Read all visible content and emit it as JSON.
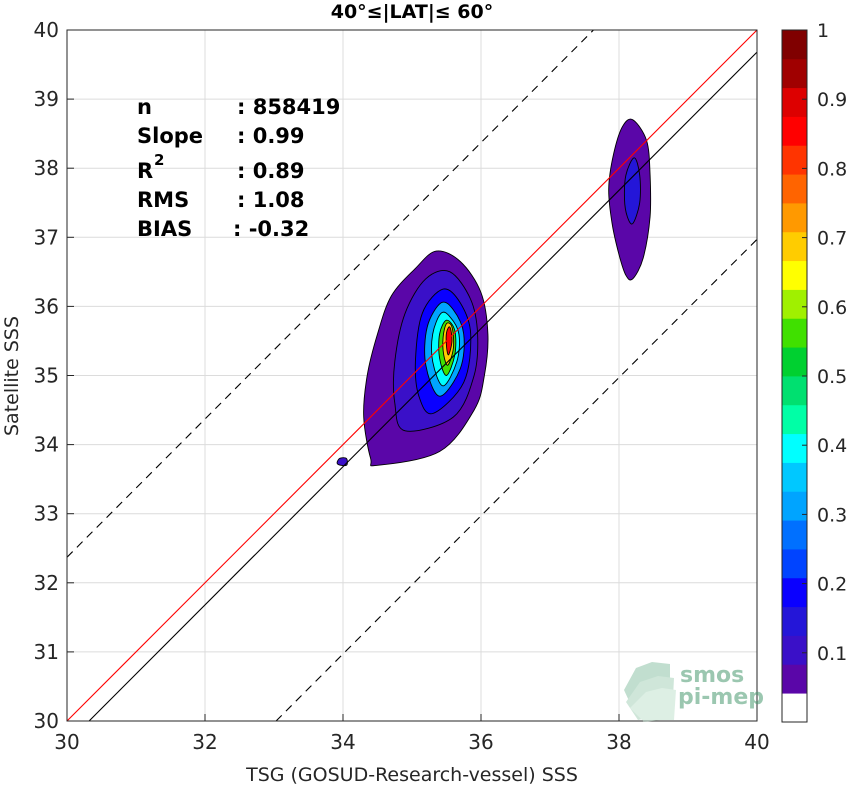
{
  "chart_data": {
    "type": "contour",
    "title": "40°≤|LAT|≤ 60°",
    "xlabel": "TSG (GOSUD-Research-vessel) SSS",
    "ylabel": "Satellite SSS",
    "xlim": [
      30,
      40
    ],
    "ylim": [
      30,
      40
    ],
    "xticks": [
      "30",
      "32",
      "34",
      "36",
      "38",
      "40"
    ],
    "yticks": [
      "30",
      "31",
      "32",
      "33",
      "34",
      "35",
      "36",
      "37",
      "38",
      "39",
      "40"
    ],
    "grid": true,
    "stats": [
      {
        "label": "n",
        "value": ": 858419"
      },
      {
        "label": "Slope",
        "value": ": 0.99"
      },
      {
        "label": "R",
        "sup": "2",
        "value": ": 0.89"
      },
      {
        "label": "RMS",
        "value": ": 1.08"
      },
      {
        "label": "BIAS",
        "value": ": -0.32"
      }
    ],
    "lines": {
      "identity": {
        "color": "#ff0000",
        "slope": 1,
        "intercept": 0
      },
      "fit": {
        "color": "#000000",
        "slope": 1,
        "intercept": -0.32
      },
      "fit_plus_rms": {
        "color": "#000000",
        "dash": true,
        "slope": 1,
        "intercept": 2.37
      },
      "fit_minus_rms": {
        "color": "#000000",
        "dash": true,
        "slope": 1,
        "intercept": -3.03
      }
    },
    "clusters": [
      {
        "center": [
          35.55,
          35.55
        ],
        "levels": [
          {
            "level": 0.05,
            "ring": [
              [
                34.5,
                33.7
              ],
              [
                35.4,
                33.9
              ],
              [
                35.9,
                34.5
              ],
              [
                36.05,
                35.0
              ],
              [
                36.1,
                35.6
              ],
              [
                36.0,
                36.2
              ],
              [
                35.7,
                36.65
              ],
              [
                35.35,
                36.8
              ],
              [
                35.05,
                36.55
              ],
              [
                34.7,
                36.15
              ],
              [
                34.5,
                35.6
              ],
              [
                34.35,
                35.0
              ],
              [
                34.3,
                34.4
              ],
              [
                34.4,
                33.8
              ]
            ]
          },
          {
            "level": 0.1,
            "ring": [
              [
                34.9,
                34.2
              ],
              [
                35.6,
                34.4
              ],
              [
                35.9,
                35.0
              ],
              [
                35.95,
                35.6
              ],
              [
                35.85,
                36.1
              ],
              [
                35.55,
                36.5
              ],
              [
                35.2,
                36.4
              ],
              [
                34.9,
                35.9
              ],
              [
                34.75,
                35.2
              ],
              [
                34.75,
                34.6
              ]
            ]
          },
          {
            "level": 0.2,
            "ring": [
              [
                35.3,
                34.45
              ],
              [
                35.75,
                34.9
              ],
              [
                35.85,
                35.6
              ],
              [
                35.7,
                36.05
              ],
              [
                35.45,
                36.25
              ],
              [
                35.15,
                35.9
              ],
              [
                35.05,
                35.2
              ],
              [
                35.1,
                34.7
              ]
            ]
          },
          {
            "level": 0.3,
            "ring": [
              [
                35.4,
                34.7
              ],
              [
                35.7,
                35.1
              ],
              [
                35.75,
                35.6
              ],
              [
                35.6,
                35.95
              ],
              [
                35.42,
                36.05
              ],
              [
                35.22,
                35.7
              ],
              [
                35.2,
                35.15
              ]
            ]
          },
          {
            "level": 0.4,
            "ring": [
              [
                35.45,
                34.85
              ],
              [
                35.65,
                35.2
              ],
              [
                35.68,
                35.6
              ],
              [
                35.55,
                35.85
              ],
              [
                35.42,
                35.9
              ],
              [
                35.3,
                35.6
              ],
              [
                35.3,
                35.2
              ]
            ]
          },
          {
            "level": 0.55,
            "ring": [
              [
                35.5,
                35.0
              ],
              [
                35.62,
                35.3
              ],
              [
                35.62,
                35.65
              ],
              [
                35.5,
                35.8
              ],
              [
                35.4,
                35.6
              ],
              [
                35.4,
                35.25
              ]
            ]
          },
          {
            "level": 0.7,
            "ring": [
              [
                35.52,
                35.15
              ],
              [
                35.6,
                35.4
              ],
              [
                35.58,
                35.7
              ],
              [
                35.5,
                35.75
              ],
              [
                35.45,
                35.55
              ],
              [
                35.46,
                35.3
              ]
            ]
          },
          {
            "level": 0.85,
            "ring": [
              [
                35.53,
                35.3
              ],
              [
                35.58,
                35.5
              ],
              [
                35.55,
                35.7
              ],
              [
                35.5,
                35.62
              ],
              [
                35.5,
                35.42
              ]
            ]
          }
        ]
      },
      {
        "center": [
          38.2,
          37.6
        ],
        "levels": [
          {
            "level": 0.05,
            "ring": [
              [
                38.2,
                36.4
              ],
              [
                38.35,
                36.7
              ],
              [
                38.45,
                37.3
              ],
              [
                38.45,
                37.9
              ],
              [
                38.4,
                38.4
              ],
              [
                38.2,
                38.7
              ],
              [
                38.05,
                38.6
              ],
              [
                37.92,
                38.2
              ],
              [
                37.85,
                37.7
              ],
              [
                37.9,
                37.2
              ],
              [
                38.0,
                36.75
              ],
              [
                38.1,
                36.45
              ]
            ]
          },
          {
            "level": 0.15,
            "ring": [
              [
                38.2,
                37.2
              ],
              [
                38.3,
                37.5
              ],
              [
                38.3,
                37.9
              ],
              [
                38.22,
                38.15
              ],
              [
                38.1,
                37.9
              ],
              [
                38.08,
                37.55
              ],
              [
                38.12,
                37.3
              ]
            ]
          }
        ]
      },
      {
        "center": [
          33.98,
          33.75
        ],
        "levels": [
          {
            "level": 0.1,
            "ring": [
              [
                33.92,
                33.72
              ],
              [
                34.05,
                33.7
              ],
              [
                34.05,
                33.8
              ],
              [
                33.95,
                33.8
              ]
            ]
          }
        ]
      }
    ],
    "colorbar": {
      "range": [
        0,
        1
      ],
      "ticks": [
        "0.1",
        "0.2",
        "0.3",
        "0.4",
        "0.5",
        "0.6",
        "0.7",
        "0.8",
        "0.9",
        "1"
      ],
      "colors": [
        "#ffffff",
        "#5a06a8",
        "#3a10c8",
        "#2416d8",
        "#0a00ff",
        "#0044ff",
        "#0070ff",
        "#00a4ff",
        "#00c8ff",
        "#00ffff",
        "#00ffa6",
        "#00e070",
        "#00d030",
        "#40e000",
        "#a0f000",
        "#ffff00",
        "#ffcc00",
        "#ff9900",
        "#ff6400",
        "#ff3400",
        "#ff0000",
        "#dd0000",
        "#a00000",
        "#800000"
      ]
    },
    "watermark": {
      "line1": "smos",
      "line2": "pi-mep"
    }
  }
}
